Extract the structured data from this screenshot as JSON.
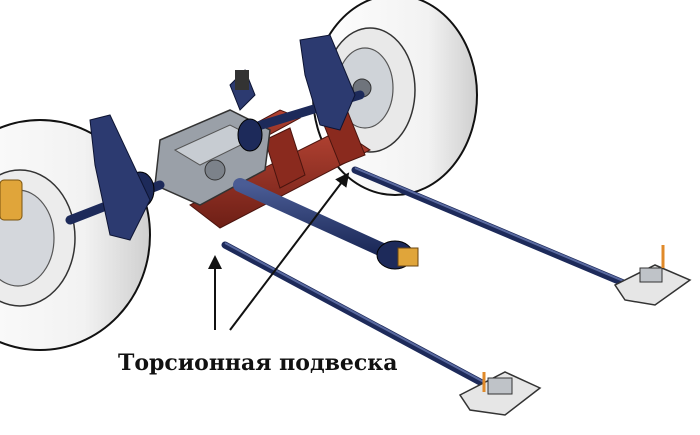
{
  "caption": "Торсионная подвеска",
  "colors": {
    "background": "#ffffff",
    "frame_red": "#8a2a1e",
    "shaft_navy": "#1d2a5a",
    "tire_outline": "#111111",
    "gear_grey": "#9aa0a8",
    "mount_orange": "#e08a2a",
    "arrow": "#111111"
  }
}
